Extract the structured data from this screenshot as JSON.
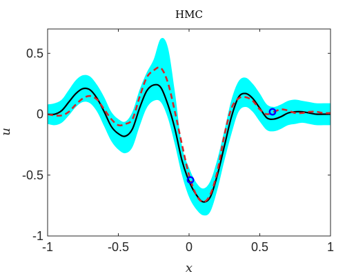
{
  "chart_data": {
    "type": "line",
    "title": "HMC",
    "xlabel": "x",
    "ylabel": "u",
    "xlim": [
      -1,
      1
    ],
    "ylim": [
      -1,
      0.7
    ],
    "grid": false,
    "legend": "none",
    "x_ticks": [
      -1,
      -0.5,
      0,
      0.5,
      1
    ],
    "x_tick_labels": [
      "-1",
      "-0.5",
      "0",
      "0.5",
      "1"
    ],
    "y_ticks": [
      -1,
      -0.5,
      0,
      0.5
    ],
    "y_tick_labels": [
      "-1",
      "-0.5",
      "0",
      "0.5"
    ],
    "colors": {
      "band": "#00ffff",
      "mean": "#000000",
      "reference": "#d62728",
      "observations": "#0000ff",
      "axis": "#262626"
    },
    "x": [
      -1.0,
      -0.95,
      -0.9,
      -0.85,
      -0.8,
      -0.75,
      -0.7,
      -0.65,
      -0.6,
      -0.55,
      -0.5,
      -0.45,
      -0.4,
      -0.35,
      -0.3,
      -0.25,
      -0.2,
      -0.15,
      -0.1,
      -0.05,
      0.0,
      0.05,
      0.1,
      0.15,
      0.2,
      0.25,
      0.3,
      0.35,
      0.4,
      0.45,
      0.5,
      0.55,
      0.6,
      0.65,
      0.7,
      0.75,
      0.8,
      0.85,
      0.9,
      0.95,
      1.0
    ],
    "series": [
      {
        "role": "mean",
        "style": "solid",
        "values": [
          0.0,
          0.0,
          0.03,
          0.1,
          0.17,
          0.21,
          0.2,
          0.13,
          0.02,
          -0.1,
          -0.16,
          -0.18,
          -0.12,
          0.05,
          0.19,
          0.24,
          0.22,
          0.08,
          -0.12,
          -0.38,
          -0.55,
          -0.66,
          -0.72,
          -0.68,
          -0.5,
          -0.26,
          -0.02,
          0.14,
          0.17,
          0.13,
          0.05,
          -0.03,
          -0.04,
          -0.02,
          0.01,
          0.02,
          0.02,
          0.01,
          0.0,
          0.0,
          0.0
        ]
      },
      {
        "role": "reference",
        "style": "dashed",
        "values": [
          0.0,
          -0.01,
          -0.01,
          0.02,
          0.08,
          0.13,
          0.15,
          0.12,
          0.04,
          -0.04,
          -0.09,
          -0.08,
          -0.04,
          0.14,
          0.3,
          0.36,
          0.38,
          0.26,
          0.02,
          -0.25,
          -0.5,
          -0.66,
          -0.72,
          -0.66,
          -0.47,
          -0.17,
          0.05,
          0.13,
          0.14,
          0.11,
          0.04,
          0.0,
          0.02,
          0.04,
          0.03,
          0.01,
          0.01,
          0.02,
          0.02,
          0.01,
          0.01
        ]
      }
    ],
    "band": {
      "role": "uncertainty",
      "lower": [
        -0.08,
        -0.09,
        -0.07,
        -0.01,
        0.06,
        0.1,
        0.09,
        0.02,
        -0.1,
        -0.22,
        -0.29,
        -0.32,
        -0.27,
        -0.1,
        0.05,
        0.11,
        0.1,
        -0.03,
        -0.25,
        -0.5,
        -0.68,
        -0.78,
        -0.83,
        -0.8,
        -0.62,
        -0.38,
        -0.16,
        0.02,
        0.06,
        0.02,
        -0.06,
        -0.13,
        -0.14,
        -0.12,
        -0.09,
        -0.08,
        -0.07,
        -0.08,
        -0.09,
        -0.09,
        -0.09
      ],
      "upper": [
        0.08,
        0.09,
        0.12,
        0.2,
        0.28,
        0.32,
        0.31,
        0.24,
        0.14,
        0.02,
        -0.04,
        -0.06,
        0.02,
        0.2,
        0.34,
        0.45,
        0.62,
        0.55,
        0.18,
        -0.26,
        -0.44,
        -0.56,
        -0.61,
        -0.55,
        -0.37,
        -0.13,
        0.12,
        0.27,
        0.3,
        0.25,
        0.17,
        0.08,
        0.06,
        0.08,
        0.11,
        0.12,
        0.11,
        0.1,
        0.09,
        0.09,
        0.09
      ]
    },
    "observations": [
      {
        "x": 0.01,
        "y": -0.54
      },
      {
        "x": 0.59,
        "y": 0.02
      }
    ]
  }
}
